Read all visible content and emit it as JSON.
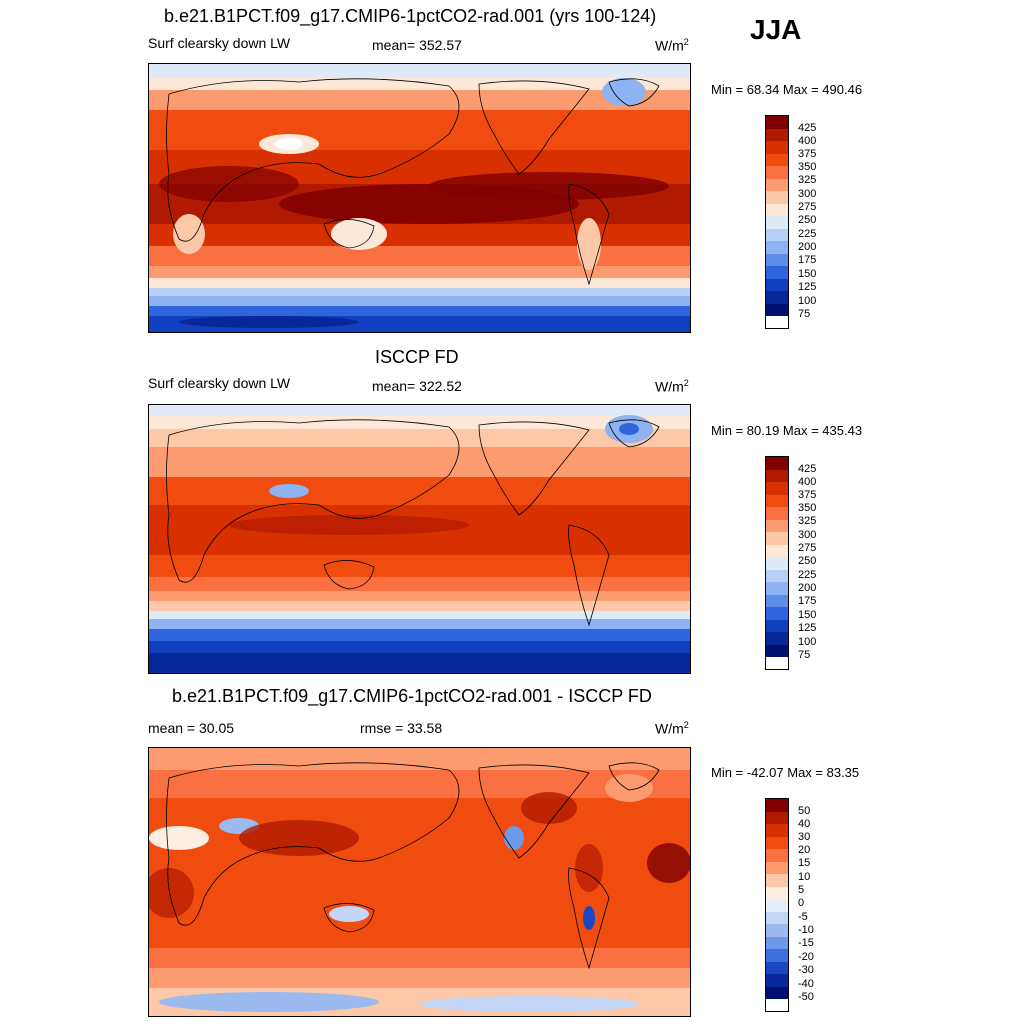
{
  "season": "JJA",
  "panels": [
    {
      "title": "b.e21.B1PCT.f09_g17.CMIP6-1pctCO2-rad.001 (yrs 100-124)",
      "left": "Surf clearsky down LW",
      "center": "mean= 352.57",
      "units": "W/m",
      "units_sup": "2",
      "minmax": "Min =  68.34 Max = 490.46",
      "legend_labels": [
        "425",
        "400",
        "375",
        "350",
        "325",
        "300",
        "275",
        "250",
        "225",
        "200",
        "175",
        "150",
        "125",
        "100",
        "75"
      ]
    },
    {
      "title": "ISCCP FD",
      "left": "Surf clearsky down LW",
      "center": "mean= 322.52",
      "units": "W/m",
      "units_sup": "2",
      "minmax": "Min =  80.19 Max = 435.43",
      "legend_labels": [
        "425",
        "400",
        "375",
        "350",
        "325",
        "300",
        "275",
        "250",
        "225",
        "200",
        "175",
        "150",
        "125",
        "100",
        "75"
      ]
    },
    {
      "title": "b.e21.B1PCT.f09_g17.CMIP6-1pctCO2-rad.001 - ISCCP FD",
      "left": "mean =  30.05",
      "center": "rmse =  33.58",
      "units": "W/m",
      "units_sup": "2",
      "minmax": "Min = -42.07 Max =  83.35",
      "legend_labels": [
        "50",
        "40",
        "30",
        "20",
        "15",
        "10",
        "5",
        "0",
        "-5",
        "-10",
        "-15",
        "-20",
        "-30",
        "-40",
        "-50"
      ]
    }
  ],
  "colors": {
    "abs_scale": [
      "#800000",
      "#b01a00",
      "#d83000",
      "#f04c10",
      "#fa7040",
      "#fc9a70",
      "#fdc8a8",
      "#fde8d8",
      "#dfeaf8",
      "#b8d0f6",
      "#8eb2f2",
      "#5c8ee8",
      "#2e64dc",
      "#1040c0",
      "#082898",
      "#001070"
    ],
    "diff_scale": [
      "#800000",
      "#b01a00",
      "#d83000",
      "#f04c10",
      "#fa7040",
      "#fc9a70",
      "#fdc8a8",
      "#fdeee2",
      "#e6eefa",
      "#c4d6f6",
      "#9cbaf0",
      "#6e98e8",
      "#3c70dc",
      "#1a48c4",
      "#08289c",
      "#001070"
    ]
  }
}
